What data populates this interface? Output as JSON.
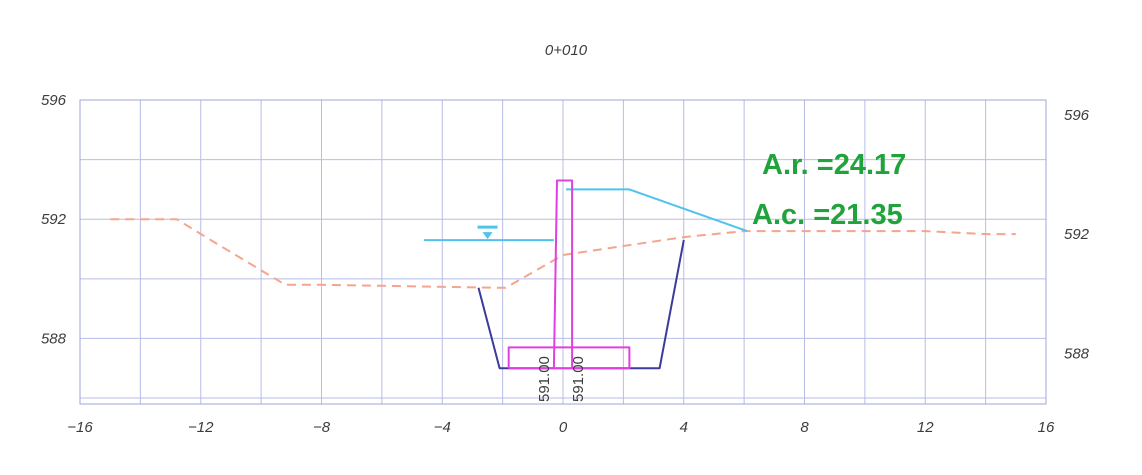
{
  "chart_data": {
    "type": "line",
    "title": "0+010",
    "x_ticks": [
      -16,
      -12,
      -8,
      -4,
      0,
      4,
      8,
      12,
      16
    ],
    "y_ticks": [
      596,
      592,
      588
    ],
    "xlim": [
      -16,
      16
    ],
    "ylim": [
      585.8,
      596
    ],
    "grid": true,
    "annotations": {
      "area_ar": "A.r. =24.17",
      "area_ac": "A.c. =21.35",
      "left_level_label": "591.00",
      "right_level_label": "591.00"
    },
    "series": [
      {
        "style": "dashed",
        "color": "#f4a58c",
        "x": [
          -15,
          -12.8,
          -11.5,
          -9.2,
          -8,
          -2,
          -1.9,
          0,
          2,
          4,
          6,
          8,
          10,
          12,
          14,
          15
        ],
        "y": [
          592,
          592,
          591.2,
          589.8,
          589.8,
          589.7,
          589.7,
          590.8,
          591.1,
          591.4,
          591.6,
          591.6,
          591.6,
          591.6,
          591.5,
          591.5
        ]
      },
      {
        "color": "#4fc3ee",
        "x": [
          -4.6,
          -0.3
        ],
        "y": [
          591.3,
          591.3
        ]
      },
      {
        "color": "#4fc3ee",
        "x": [
          0.1,
          2.2,
          6.1
        ],
        "y": [
          593.0,
          593.0,
          591.6
        ]
      },
      {
        "color": "#3c3a9a",
        "x": [
          -2.8,
          -2.1,
          -1.8,
          -0.3
        ],
        "y": [
          589.7,
          587.0,
          587.0,
          587.0
        ]
      },
      {
        "color": "#3c3a9a",
        "x": [
          0.3,
          2.6,
          3.2,
          4.0
        ],
        "y": [
          587.0,
          587.0,
          587.0,
          591.3
        ]
      },
      {
        "color": "#e040e0",
        "x": [
          -1.8,
          2.2,
          2.2,
          -1.8,
          -1.8
        ],
        "y": [
          587.0,
          587.0,
          587.7,
          587.7,
          587.0
        ]
      },
      {
        "color": "#e040e0",
        "x": [
          -0.3,
          -0.2,
          0.3,
          0.3,
          -0.3
        ],
        "y": [
          587.0,
          593.3,
          593.3,
          587.0,
          587.0
        ]
      }
    ],
    "water_markers": [
      {
        "color": "#4fc3ee",
        "x": -2.5,
        "y": 591.3
      }
    ]
  }
}
